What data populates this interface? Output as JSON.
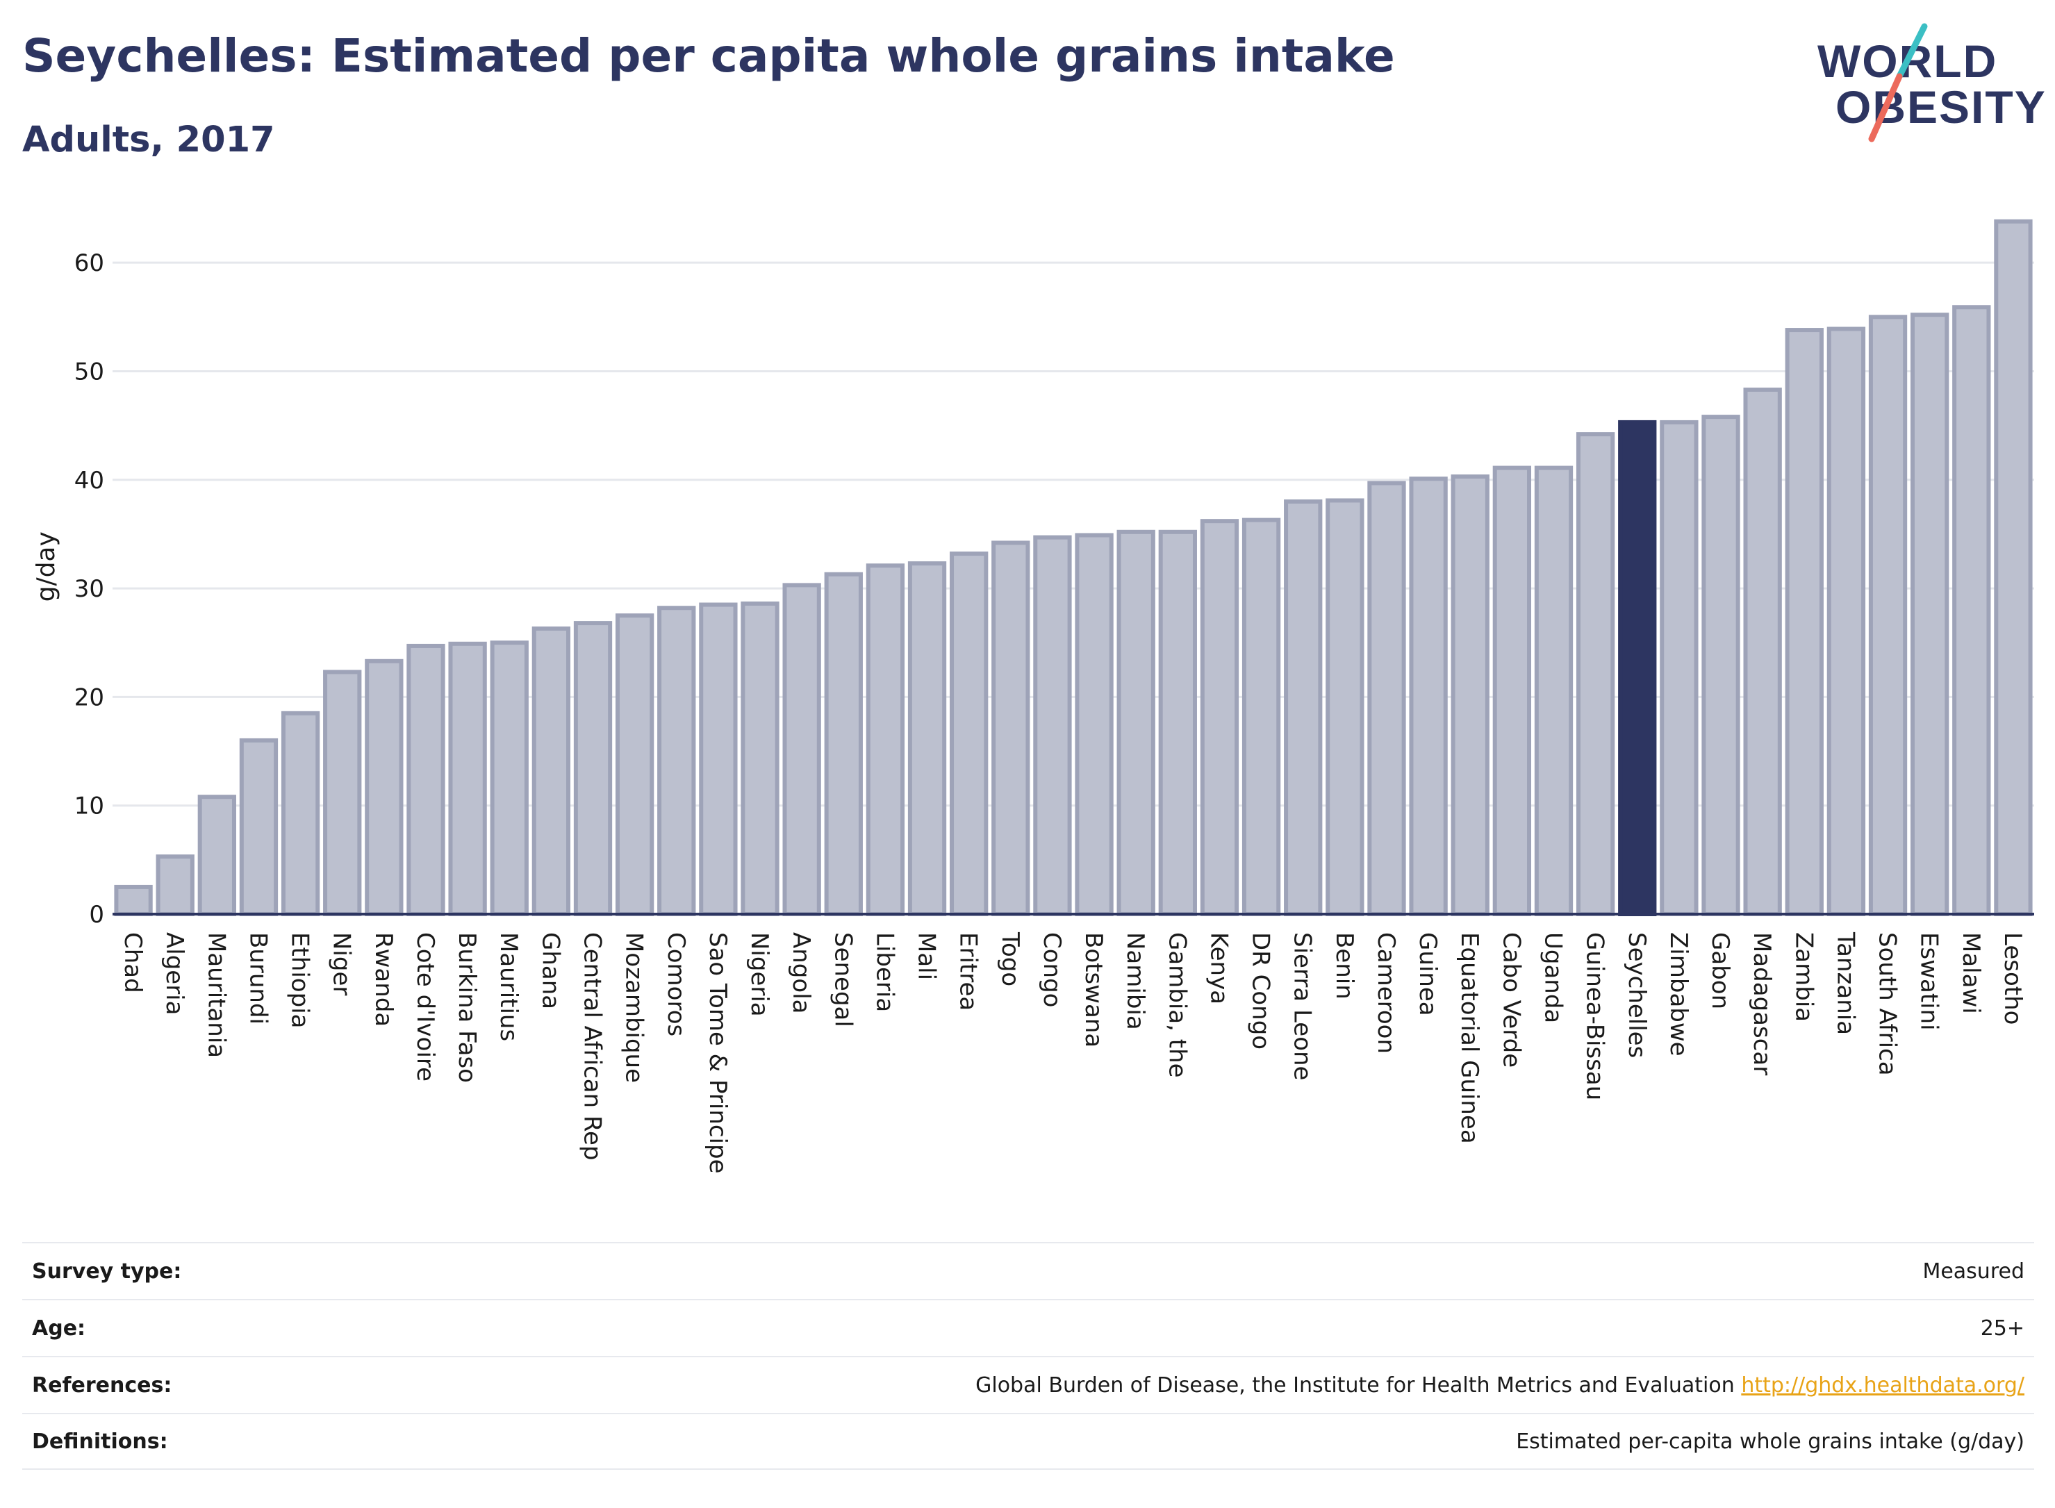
{
  "header": {
    "title": "Seychelles: Estimated per capita whole grains intake",
    "subtitle": "Adults, 2017"
  },
  "logo": {
    "line1": "WORLD",
    "line2": "OBESITY"
  },
  "colors": {
    "bar": "#bcc0cf",
    "bar_stroke": "#9ea3b8",
    "highlight": "#2d3561",
    "axis_text": "#1a1a1a",
    "gridline": "#e5e7ec",
    "logo_teal": "#3bbfc4",
    "logo_coral": "#ec6a5c"
  },
  "chart_data": {
    "type": "bar",
    "title": "Seychelles: Estimated per capita whole grains intake",
    "subtitle": "Adults, 2017",
    "ylabel": "g/day",
    "xlabel": "",
    "ylim": [
      0,
      65
    ],
    "yticks": [
      0,
      10,
      20,
      30,
      40,
      50,
      60
    ],
    "grid": true,
    "highlight": "Seychelles",
    "categories": [
      "Chad",
      "Algeria",
      "Mauritania",
      "Burundi",
      "Ethiopia",
      "Niger",
      "Rwanda",
      "Cote d'Ivoire",
      "Burkina Faso",
      "Mauritius",
      "Ghana",
      "Central African Rep",
      "Mozambique",
      "Comoros",
      "Sao Tome & Principe",
      "Nigeria",
      "Angola",
      "Senegal",
      "Liberia",
      "Mali",
      "Eritrea",
      "Togo",
      "Congo",
      "Botswana",
      "Namibia",
      "Gambia, the",
      "Kenya",
      "DR Congo",
      "Sierra Leone",
      "Benin",
      "Cameroon",
      "Guinea",
      "Equatorial Guinea",
      "Cabo Verde",
      "Uganda",
      "Guinea-Bissau",
      "Seychelles",
      "Zimbabwe",
      "Gabon",
      "Madagascar",
      "Zambia",
      "Tanzania",
      "South Africa",
      "Eswatini",
      "Malawi",
      "Lesotho"
    ],
    "values": [
      2.5,
      5.3,
      10.8,
      16.0,
      18.5,
      22.3,
      23.3,
      24.7,
      24.9,
      25.0,
      26.3,
      26.8,
      27.5,
      28.2,
      28.5,
      28.6,
      30.3,
      31.3,
      32.1,
      32.3,
      33.2,
      34.2,
      34.7,
      34.9,
      35.2,
      35.2,
      36.2,
      36.3,
      38.0,
      38.1,
      39.7,
      40.1,
      40.3,
      41.1,
      41.1,
      44.2,
      45.3,
      45.3,
      45.8,
      48.3,
      53.8,
      53.9,
      55.0,
      55.2,
      55.9,
      63.8
    ]
  },
  "info": {
    "survey_type_label": "Survey type:",
    "survey_type_value": "Measured",
    "age_label": "Age:",
    "age_value": "25+",
    "references_label": "References:",
    "references_value": "Global Burden of Disease, the Institute for Health Metrics and Evaluation",
    "references_link": "http://ghdx.healthdata.org/",
    "definitions_label": "Definitions:",
    "definitions_value": "Estimated per-capita whole grains intake (g/day)"
  }
}
